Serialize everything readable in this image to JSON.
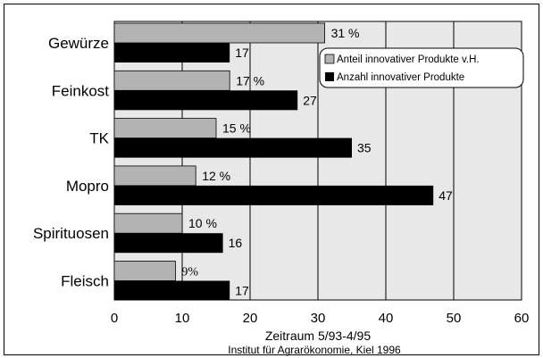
{
  "chart_data": {
    "type": "bar",
    "orientation": "horizontal",
    "categories": [
      "Gewürze",
      "Feinkost",
      "TK",
      "Mopro",
      "Spirituosen",
      "Fleisch"
    ],
    "series": [
      {
        "name": "Anteil innovativer Produkte v.H.",
        "values": [
          31,
          17,
          15,
          12,
          10,
          9
        ],
        "labels": [
          "31 %",
          "17 %",
          "15 %",
          "12 %",
          "10 %",
          "9%"
        ],
        "color": "#b3b3b3"
      },
      {
        "name": "Anzahl innovativer Produkte",
        "values": [
          17,
          27,
          35,
          47,
          16,
          17
        ],
        "labels": [
          "17",
          "27",
          "35",
          "47",
          "16",
          "17"
        ],
        "color": "#000000"
      }
    ],
    "xlabel": "Zeitraum 5/93-4/95",
    "xlim": [
      0,
      60
    ],
    "xticks": [
      "0",
      "10",
      "20",
      "30",
      "40",
      "50",
      "60"
    ],
    "grid": "vertical",
    "plot_background": "#e8e8e8",
    "legend_position": "top-right",
    "source": "Institut für Agrarökonomie, Kiel 1996"
  }
}
